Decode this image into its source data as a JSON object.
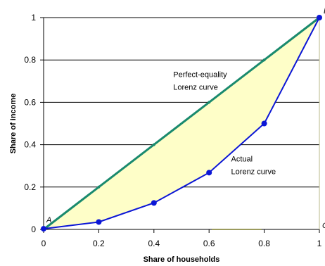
{
  "chart_data": {
    "type": "line",
    "title": "",
    "xlabel": "Share of households",
    "ylabel": "Share of income",
    "xlim": [
      0,
      1
    ],
    "ylim": [
      0,
      1
    ],
    "x_ticks": [
      "0",
      "0.2",
      "0.4",
      "0.6",
      "0.8",
      "1"
    ],
    "y_ticks": [
      "0",
      "0.2",
      "0.4",
      "0.6",
      "0.8",
      "1"
    ],
    "grid": "horizontal",
    "series": [
      {
        "color": "#1a8a6e",
        "x": [
          0,
          0.2,
          0.4,
          0.6,
          0.8,
          1
        ],
        "y": [
          0,
          0.2,
          0.4,
          0.6,
          0.8,
          1
        ]
      },
      {
        "color": "#0b16d6",
        "x": [
          0,
          0.2,
          0.4,
          0.6,
          0.8,
          1
        ],
        "y": [
          0.003,
          0.035,
          0.125,
          0.268,
          0.5,
          1
        ]
      }
    ],
    "fill_between_color": "#fefec8",
    "annotations": [
      {
        "lines": [
          "Perfect-equality",
          "Lorenz curve"
        ],
        "x": 0.47,
        "y": 0.72
      },
      {
        "lines": [
          "Actual",
          "Lorenz curve"
        ],
        "x": 0.68,
        "y": 0.32
      }
    ],
    "point_labels": [
      {
        "text": "A",
        "x": 0,
        "y": 0
      },
      {
        "text": "B",
        "x": 1,
        "y": 1
      },
      {
        "text": "C",
        "x": 1,
        "y": 0
      }
    ]
  }
}
